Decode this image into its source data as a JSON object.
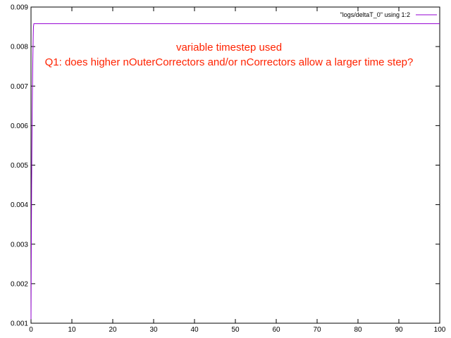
{
  "chart_data": {
    "type": "line",
    "xlim": [
      0,
      100
    ],
    "ylim": [
      0.001,
      0.009
    ],
    "x_ticks": [
      "0",
      "10",
      "20",
      "30",
      "40",
      "50",
      "60",
      "70",
      "80",
      "90",
      "100"
    ],
    "y_ticks": [
      "0.001",
      "0.002",
      "0.003",
      "0.004",
      "0.005",
      "0.006",
      "0.007",
      "0.008",
      "0.009"
    ],
    "grid": false,
    "legend_position": "top-right",
    "series": [
      {
        "name": "\"logs/deltaT_0\" using 1:2",
        "color": "#9400d3",
        "x": [
          0.0,
          0.05,
          0.1,
          0.15,
          0.2,
          0.25,
          0.3,
          0.35,
          0.4,
          0.45,
          0.5,
          0.55,
          0.6,
          0.7,
          0.8,
          1,
          5,
          10,
          20,
          30,
          40,
          50,
          60,
          70,
          80,
          90,
          100
        ],
        "y": [
          0.0011,
          0.0023,
          0.0034,
          0.0045,
          0.0052,
          0.0058,
          0.0064,
          0.0069,
          0.0073,
          0.0077,
          0.008,
          0.0083,
          0.0085,
          0.00858,
          0.00858,
          0.00858,
          0.00858,
          0.00858,
          0.00858,
          0.00858,
          0.00858,
          0.00858,
          0.00858,
          0.00858,
          0.00858,
          0.00858,
          0.00858
        ]
      }
    ],
    "annotations": [
      {
        "text": "variable timestep used",
        "color": "#ff2200"
      },
      {
        "text": "Q1: does higher nOuterCorrectors and/or nCorrectors allow a larger time step?",
        "color": "#ff2200"
      }
    ]
  }
}
